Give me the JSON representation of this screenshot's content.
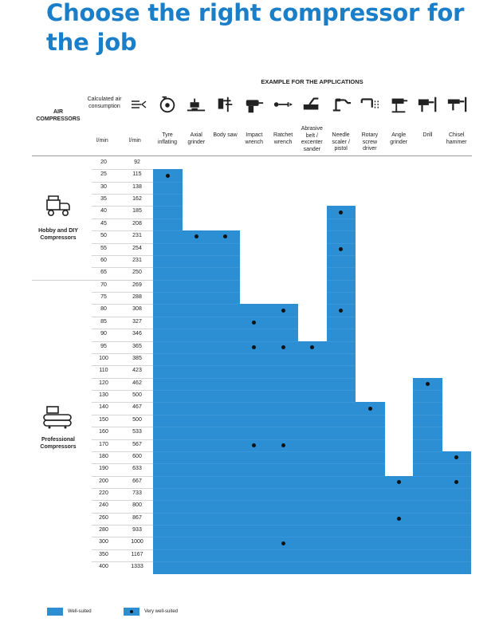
{
  "title": "Choose the right compressor for the job",
  "header": {
    "applications_heading": "EXAMPLE FOR THE APPLICATIONS",
    "air_compressors": "AIR COMPRESSORS",
    "calculated_air_consumption": "Calculated air consumption",
    "unit_left": "l/min",
    "unit_right": "l/min"
  },
  "colors": {
    "well_suited": "#2c8fd3",
    "very_well_suited_dot": "#111111",
    "title": "#1a7fc8"
  },
  "categories": [
    {
      "label": "Hobby and DIY Compressors",
      "icon": "portable-compressor-icon"
    },
    {
      "label": "Professional Compressors",
      "icon": "twin-tank-compressor-icon"
    }
  ],
  "columns": [
    {
      "label": "Tyre inflating",
      "icon": "tyre-inflator-icon"
    },
    {
      "label": "Axial grinder",
      "icon": "axial-grinder-icon"
    },
    {
      "label": "Body saw",
      "icon": "body-saw-icon"
    },
    {
      "label": "Impact wrench",
      "icon": "impact-wrench-icon"
    },
    {
      "label": "Ratchet wrench",
      "icon": "ratchet-wrench-icon"
    },
    {
      "label": "Abrasive belt / excenter sander",
      "icon": "belt-sander-icon"
    },
    {
      "label": "Needle scaler / pistol",
      "icon": "needle-scaler-icon"
    },
    {
      "label": "Rotary screw driver",
      "icon": "screw-driver-icon"
    },
    {
      "label": "Angle grinder",
      "icon": "angle-grinder-icon"
    },
    {
      "label": "Drill",
      "icon": "drill-icon"
    },
    {
      "label": "Chisel hammer",
      "icon": "chisel-hammer-icon"
    }
  ],
  "rows": [
    {
      "l": "20",
      "c": "92"
    },
    {
      "l": "25",
      "c": "115"
    },
    {
      "l": "30",
      "c": "138"
    },
    {
      "l": "35",
      "c": "162"
    },
    {
      "l": "40",
      "c": "185"
    },
    {
      "l": "45",
      "c": "208"
    },
    {
      "l": "50",
      "c": "231"
    },
    {
      "l": "55",
      "c": "254"
    },
    {
      "l": "60",
      "c": "231"
    },
    {
      "l": "65",
      "c": "250"
    },
    {
      "l": "70",
      "c": "269"
    },
    {
      "l": "75",
      "c": "288"
    },
    {
      "l": "80",
      "c": "308"
    },
    {
      "l": "85",
      "c": "327"
    },
    {
      "l": "90",
      "c": "346"
    },
    {
      "l": "95",
      "c": "365"
    },
    {
      "l": "100",
      "c": "385"
    },
    {
      "l": "110",
      "c": "423"
    },
    {
      "l": "120",
      "c": "462"
    },
    {
      "l": "130",
      "c": "500"
    },
    {
      "l": "140",
      "c": "467"
    },
    {
      "l": "150",
      "c": "500"
    },
    {
      "l": "160",
      "c": "533"
    },
    {
      "l": "170",
      "c": "567"
    },
    {
      "l": "180",
      "c": "600"
    },
    {
      "l": "190",
      "c": "633"
    },
    {
      "l": "200",
      "c": "667"
    },
    {
      "l": "220",
      "c": "733"
    },
    {
      "l": "240",
      "c": "800"
    },
    {
      "l": "260",
      "c": "867"
    },
    {
      "l": "280",
      "c": "933"
    },
    {
      "l": "300",
      "c": "1000"
    },
    {
      "l": "350",
      "c": "1167"
    },
    {
      "l": "400",
      "c": "1333"
    }
  ],
  "suitability": {
    "well_suited_from_row": [
      1,
      6,
      6,
      12,
      12,
      15,
      4,
      20,
      26,
      18,
      24
    ],
    "very_well_suited_rows": [
      [
        1
      ],
      [
        6
      ],
      [
        6
      ],
      [
        13,
        15,
        23
      ],
      [
        12,
        15,
        23,
        31
      ],
      [
        15
      ],
      [
        4,
        7,
        12
      ],
      [
        20
      ],
      [
        26,
        29
      ],
      [
        18
      ],
      [
        24,
        26
      ]
    ]
  },
  "legend": {
    "well_suited": "Well-suited",
    "very_well_suited": "Very well-suited"
  }
}
